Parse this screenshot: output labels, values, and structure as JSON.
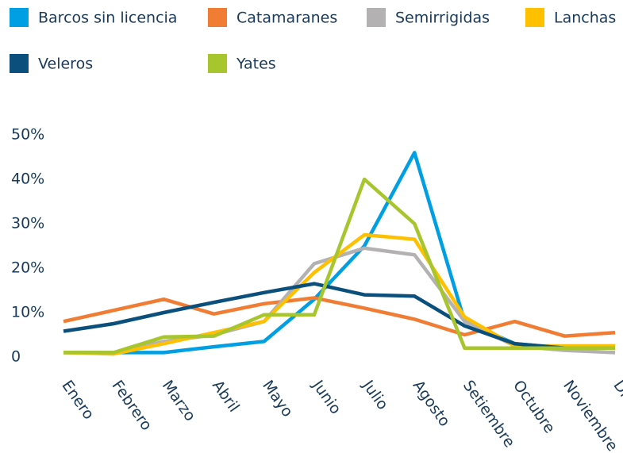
{
  "chart_data": {
    "type": "line",
    "categories": [
      "Enero",
      "Febrero",
      "Marzo",
      "Abril",
      "Mayo",
      "Junio",
      "Julio",
      "Agosto",
      "Setiembre",
      "Octubre",
      "Noviembre",
      "Diciembre"
    ],
    "series": [
      {
        "name": "Barcos sin licencia",
        "color": "#009fe3",
        "values": [
          1,
          1,
          1,
          2.3,
          3.5,
          13,
          25,
          46,
          8,
          3,
          2,
          2
        ]
      },
      {
        "name": "Catamaranes",
        "color": "#f07d33",
        "values": [
          8,
          10.5,
          13,
          9.7,
          12,
          13.3,
          11,
          8.5,
          5,
          8,
          4.7,
          5.5
        ]
      },
      {
        "name": "Semirrigidas",
        "color": "#b3b1b2",
        "values": [
          1,
          1,
          3.5,
          5,
          8,
          21,
          24.5,
          23,
          8,
          2.5,
          1.5,
          1
        ]
      },
      {
        "name": "Lanchas",
        "color": "#ffc000",
        "values": [
          1,
          0.7,
          3,
          5.5,
          8,
          19,
          27.5,
          26.5,
          9,
          2.5,
          2.5,
          2.5
        ]
      },
      {
        "name": "Veleros",
        "color": "#0b4f7c",
        "values": [
          5.8,
          7.5,
          10,
          12.3,
          14.5,
          16.5,
          14,
          13.7,
          7,
          3,
          2,
          2
        ]
      },
      {
        "name": "Yates",
        "color": "#a7c52d",
        "values": [
          1,
          1,
          4.5,
          4.7,
          9.5,
          9.5,
          40,
          30,
          2,
          2,
          2,
          2
        ]
      }
    ],
    "ylim": [
      0,
      50
    ],
    "yticks": [
      0,
      {
        "value": 10,
        "label": "10%"
      },
      {
        "value": 20,
        "label": "20%"
      },
      {
        "value": 30,
        "label": "30%"
      },
      {
        "value": 40,
        "label": "40%"
      },
      {
        "value": 50,
        "label": "50%"
      }
    ]
  }
}
